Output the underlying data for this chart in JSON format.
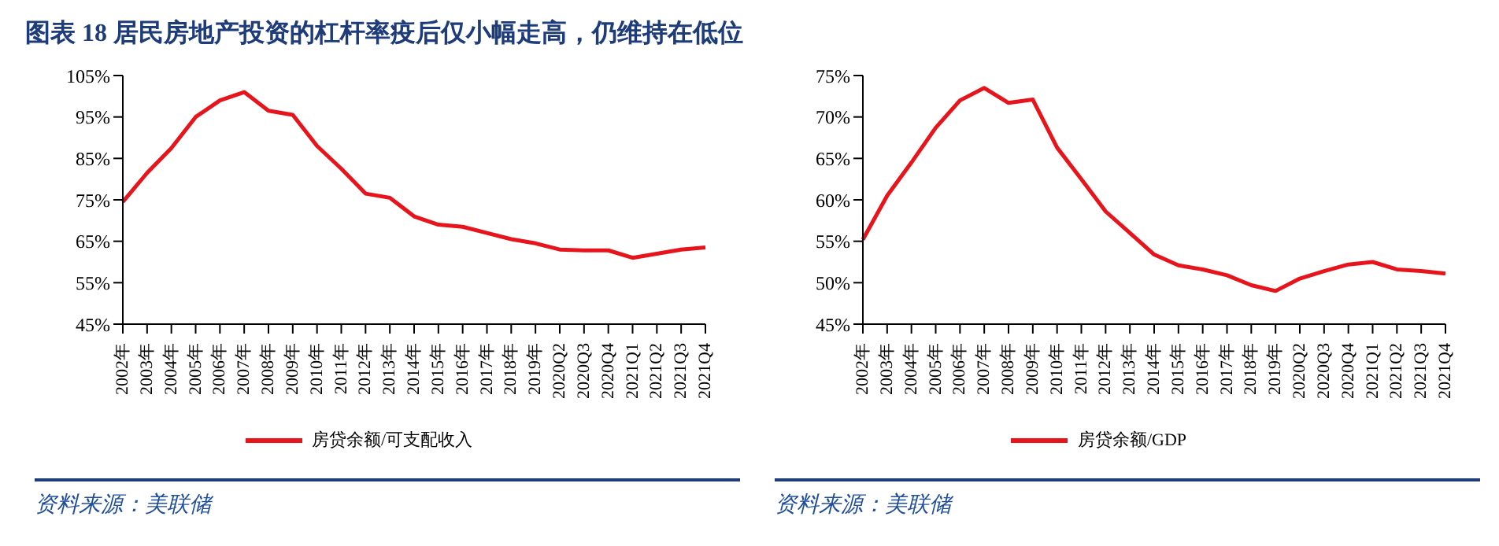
{
  "chart_data": [
    {
      "type": "line",
      "title": "图表 18  居民房地产投资的杠杆率疫后仅小幅走高，仍维持在低位",
      "categories": [
        "2002年",
        "2003年",
        "2004年",
        "2005年",
        "2006年",
        "2007年",
        "2008年",
        "2009年",
        "2010年",
        "2011年",
        "2012年",
        "2013年",
        "2014年",
        "2015年",
        "2016年",
        "2017年",
        "2018年",
        "2019年",
        "2020Q2",
        "2020Q3",
        "2020Q4",
        "2021Q1",
        "2021Q2",
        "2021Q3",
        "2021Q4"
      ],
      "series": [
        {
          "name": "房贷余额/可支配收入",
          "color": "#e8141c",
          "values": [
            74.5,
            81.5,
            87.5,
            95,
            99,
            101,
            96.5,
            95.5,
            88,
            82.5,
            76.5,
            75.5,
            71,
            69,
            68.5,
            67,
            65.5,
            64.5,
            63,
            62.8,
            62.8,
            61,
            62,
            63,
            63.5
          ]
        }
      ],
      "ylim": [
        45,
        105
      ],
      "yticks": [
        {
          "value": 45,
          "label": "45%"
        },
        {
          "value": 55,
          "label": "55%"
        },
        {
          "value": 65,
          "label": "65%"
        },
        {
          "value": 75,
          "label": "75%"
        },
        {
          "value": 85,
          "label": "85%"
        },
        {
          "value": 95,
          "label": "95%"
        },
        {
          "value": 105,
          "label": "105%"
        }
      ],
      "grid": false,
      "legend": "bottom",
      "marker": "none",
      "line_style": "solid",
      "annotations": [
        "资料来源：美联储"
      ]
    },
    {
      "type": "line",
      "categories": [
        "2002年",
        "2003年",
        "2004年",
        "2005年",
        "2006年",
        "2007年",
        "2008年",
        "2009年",
        "2010年",
        "2011年",
        "2012年",
        "2013年",
        "2014年",
        "2015年",
        "2016年",
        "2017年",
        "2018年",
        "2019年",
        "2020Q2",
        "2020Q3",
        "2020Q4",
        "2021Q1",
        "2021Q2",
        "2021Q3",
        "2021Q4"
      ],
      "series": [
        {
          "name": "房贷余额/GDP",
          "color": "#e8141c",
          "values": [
            55.2,
            60.5,
            64.5,
            68.7,
            72,
            73.5,
            71.7,
            72.1,
            66.3,
            62.5,
            58.6,
            56,
            53.4,
            52.1,
            51.6,
            50.9,
            49.7,
            49,
            50.5,
            51.4,
            52.2,
            52.5,
            51.6,
            51.4,
            51.1
          ]
        }
      ],
      "ylim": [
        45,
        75
      ],
      "yticks": [
        {
          "value": 45,
          "label": "45%"
        },
        {
          "value": 50,
          "label": "50%"
        },
        {
          "value": 55,
          "label": "55%"
        },
        {
          "value": 60,
          "label": "60%"
        },
        {
          "value": 65,
          "label": "65%"
        },
        {
          "value": 70,
          "label": "70%"
        },
        {
          "value": 75,
          "label": "75%"
        }
      ],
      "grid": false,
      "legend": "bottom",
      "marker": "none",
      "line_style": "solid",
      "annotations": [
        "资料来源：美联储"
      ]
    }
  ]
}
